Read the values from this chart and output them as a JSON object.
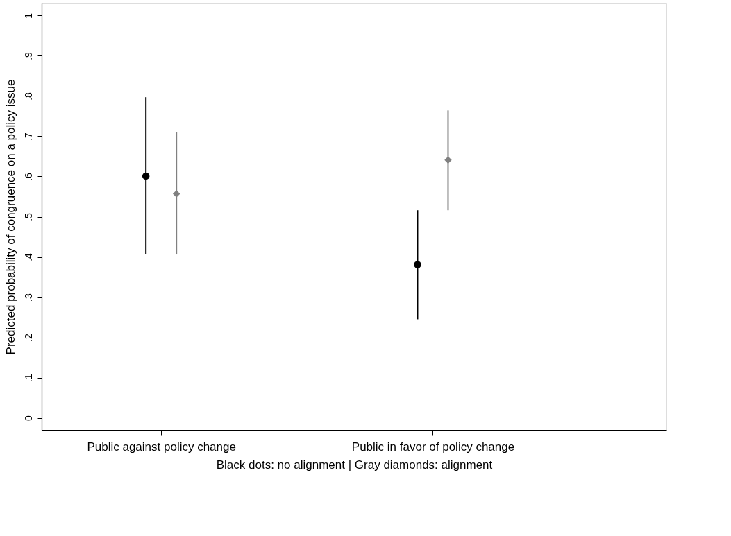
{
  "chart_data": {
    "type": "scatter",
    "ylabel": "Predicted probability of congruence on a policy issue",
    "xlabel": "Black dots: no alignment | Gray diamonds: alignment",
    "categories": [
      "Public against policy change",
      "Public in favor of policy change"
    ],
    "series": [
      {
        "color": "#000000",
        "marker": "circle",
        "values": [
          0.601,
          0.381
        ],
        "errors": [
          [
            0.406,
            0.797
          ],
          [
            0.245,
            0.516
          ]
        ]
      },
      {
        "color": "#808080",
        "marker": "diamond",
        "values": [
          0.557,
          0.641
        ],
        "errors": [
          [
            0.406,
            0.71
          ],
          [
            0.516,
            0.764
          ]
        ]
      }
    ],
    "ylim": [
      -0.03,
      1.03
    ],
    "yticks": [
      {
        "value": 0,
        "label": "0"
      },
      {
        "value": 0.1,
        "label": ".1"
      },
      {
        "value": 0.2,
        "label": ".2"
      },
      {
        "value": 0.3,
        "label": ".3"
      },
      {
        "value": 0.4,
        "label": ".4"
      },
      {
        "value": 0.5,
        "label": ".5"
      },
      {
        "value": 0.6,
        "label": ".6"
      },
      {
        "value": 0.7,
        "label": ".7"
      },
      {
        "value": 0.8,
        "label": ".8"
      },
      {
        "value": 0.9,
        "label": ".9"
      },
      {
        "value": 1,
        "label": "1"
      }
    ],
    "grid": false
  }
}
